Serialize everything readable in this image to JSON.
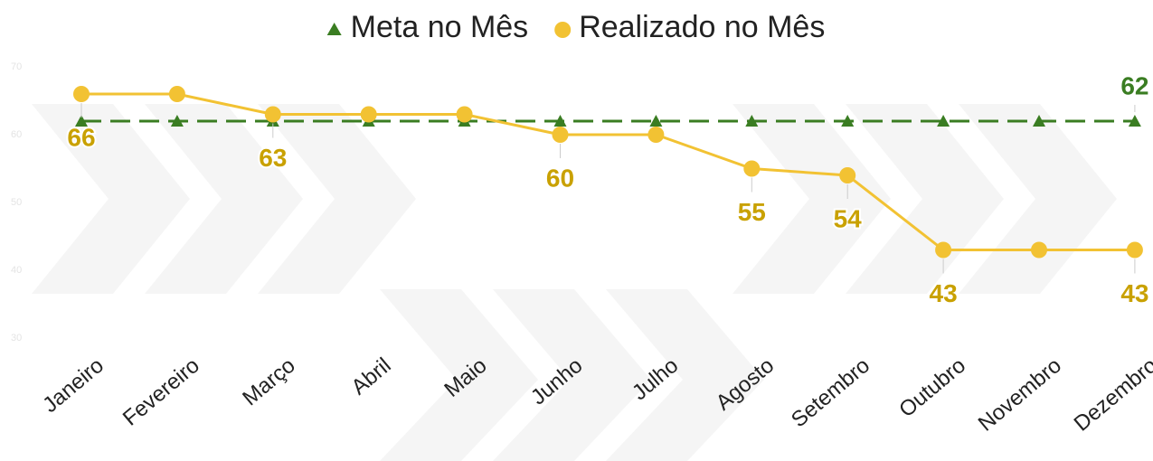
{
  "chart_data": {
    "type": "line",
    "categories": [
      "Janeiro",
      "Fevereiro",
      "Março",
      "Abril",
      "Maio",
      "Junho",
      "Julho",
      "Agosto",
      "Setembro",
      "Outubro",
      "Novembro",
      "Dezembro"
    ],
    "series": [
      {
        "name": "Meta no Mês",
        "color": "#3a7d22",
        "marker": "triangle",
        "dashed": true,
        "values": [
          62,
          62,
          62,
          62,
          62,
          62,
          62,
          62,
          62,
          62,
          62,
          62
        ],
        "value_labels": [
          null,
          null,
          null,
          null,
          null,
          null,
          null,
          null,
          null,
          null,
          null,
          "62"
        ]
      },
      {
        "name": "Realizado no Mês",
        "color": "#f2c233",
        "marker": "circle",
        "dashed": false,
        "values": [
          66,
          66,
          63,
          63,
          63,
          60,
          60,
          55,
          54,
          43,
          43,
          43
        ],
        "value_labels": [
          "66",
          null,
          "63",
          null,
          null,
          "60",
          null,
          "55",
          "54",
          "43",
          null,
          "43"
        ]
      }
    ],
    "ylim": [
      30,
      70
    ],
    "yticks": [
      30,
      40,
      50,
      60,
      70
    ]
  }
}
